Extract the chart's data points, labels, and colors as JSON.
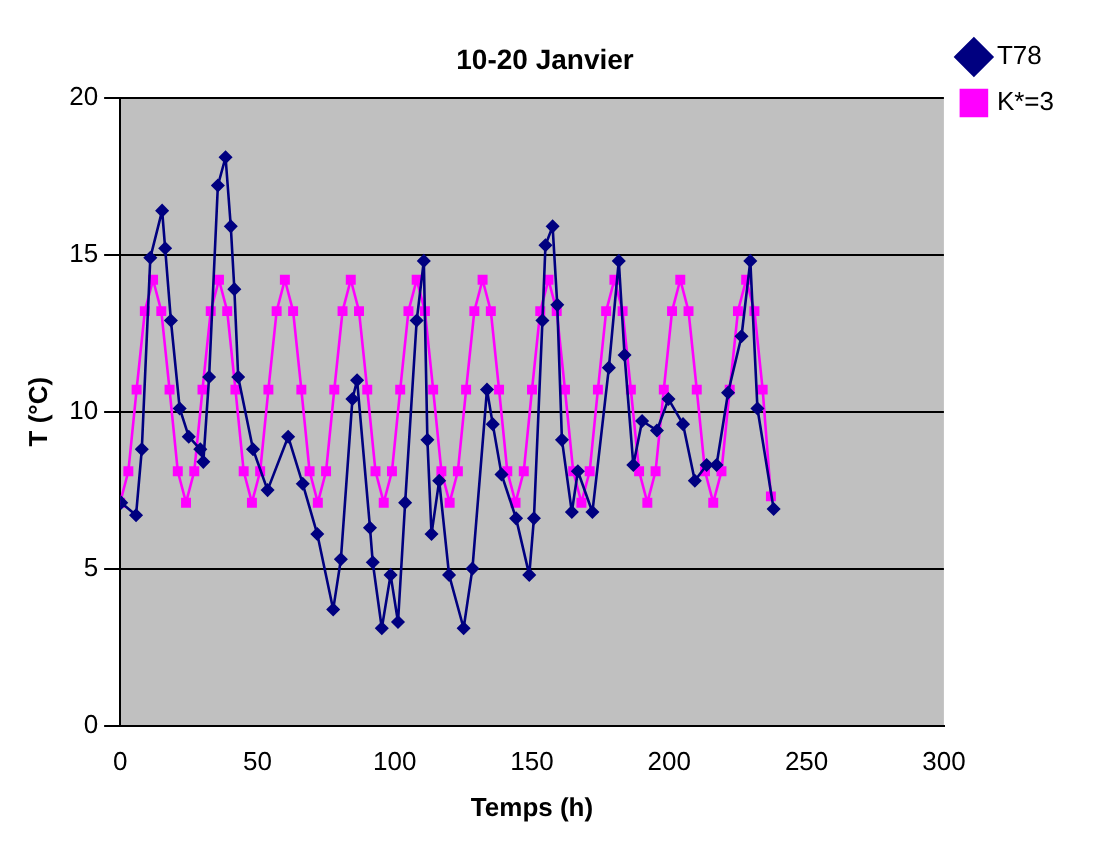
{
  "chart_data": {
    "type": "line",
    "title": "10-20 Janvier",
    "xlabel": "Temps (h)",
    "ylabel": "T (°C)",
    "xlim": [
      0,
      300
    ],
    "xticks": [
      0,
      50,
      100,
      150,
      200,
      250,
      300
    ],
    "ylim": [
      0,
      20
    ],
    "yticks": [
      0,
      5,
      10,
      15,
      20
    ],
    "grid": "y",
    "legend": "right",
    "series": [
      {
        "name": "T78",
        "color": "#000080",
        "marker": "diamond",
        "x": [
          0.4,
          5.8,
          7.9,
          11,
          15.3,
          16.4,
          18.5,
          21.7,
          25,
          29.2,
          30.3,
          32.4,
          35.6,
          38.4,
          40.3,
          41.6,
          43,
          48.4,
          53.7,
          61.2,
          66.5,
          71.8,
          77.6,
          80.4,
          84.6,
          86.3,
          91,
          92,
          95.3,
          98.5,
          101.2,
          103.8,
          108,
          110.6,
          111.9,
          113.4,
          116.2,
          119.8,
          125.1,
          128.3,
          133.6,
          135.7,
          138.9,
          144.2,
          149,
          150.7,
          153.8,
          154.9,
          157.5,
          159.2,
          160.9,
          164.5,
          166.7,
          172,
          178,
          181.6,
          183.7,
          186.9,
          190.1,
          195.5,
          199.7,
          205,
          209.3,
          213.6,
          217.2,
          221.4,
          226.3,
          229.5,
          232.1,
          238
        ],
        "values": [
          7.1,
          6.7,
          8.8,
          14.9,
          16.4,
          15.2,
          12.9,
          10.1,
          9.2,
          8.8,
          8.4,
          11.1,
          17.2,
          18.1,
          15.9,
          13.9,
          11.1,
          8.8,
          7.5,
          9.2,
          7.7,
          6.1,
          3.7,
          5.3,
          10.4,
          11,
          6.3,
          5.2,
          3.1,
          4.8,
          3.3,
          7.1,
          12.9,
          14.8,
          9.1,
          6.1,
          7.8,
          4.8,
          3.1,
          5,
          10.7,
          9.6,
          8,
          6.6,
          4.8,
          6.6,
          12.9,
          15.3,
          15.9,
          13.4,
          9.1,
          6.8,
          8.1,
          6.8,
          11.4,
          14.8,
          11.8,
          8.3,
          9.7,
          9.4,
          10.4,
          9.6,
          7.8,
          8.3,
          8.3,
          10.6,
          12.4,
          14.8,
          10.1,
          6.9
        ]
      },
      {
        "name": "K*=3",
        "color": "#ff00ff",
        "marker": "square",
        "x": [
          0,
          3,
          6,
          9,
          12,
          15,
          18,
          21,
          24,
          27,
          30,
          33,
          36,
          39,
          42,
          45,
          48,
          51,
          54,
          57,
          60,
          63,
          66,
          69,
          72,
          75,
          78,
          81,
          84,
          87,
          90,
          93,
          96,
          99,
          102,
          105,
          108,
          111,
          114,
          117,
          120,
          123,
          126,
          129,
          132,
          135,
          138,
          141,
          144,
          147,
          150,
          153,
          156,
          159,
          162,
          165,
          168,
          171,
          174,
          177,
          180,
          183,
          186,
          189,
          192,
          195,
          198,
          201,
          204,
          207,
          210,
          213,
          216,
          219,
          222,
          225,
          228,
          231,
          234,
          237
        ],
        "values": [
          7.1,
          8.1,
          10.7,
          13.2,
          14.2,
          13.2,
          10.7,
          8.1,
          7.1,
          8.1,
          10.7,
          13.2,
          14.2,
          13.2,
          10.7,
          8.1,
          7.1,
          8.1,
          10.7,
          13.2,
          14.2,
          13.2,
          10.7,
          8.1,
          7.1,
          8.1,
          10.7,
          13.2,
          14.2,
          13.2,
          10.7,
          8.1,
          7.1,
          8.1,
          10.7,
          13.2,
          14.2,
          13.2,
          10.7,
          8.1,
          7.1,
          8.1,
          10.7,
          13.2,
          14.2,
          13.2,
          10.7,
          8.1,
          7.1,
          8.1,
          10.7,
          13.2,
          14.2,
          13.2,
          10.7,
          8.1,
          7.1,
          8.1,
          10.7,
          13.2,
          14.2,
          13.2,
          10.7,
          8.1,
          7.1,
          8.1,
          10.7,
          13.2,
          14.2,
          13.2,
          10.7,
          8.1,
          7.1,
          8.1,
          10.7,
          13.2,
          14.2,
          13.2,
          10.7,
          7.3
        ]
      }
    ]
  }
}
